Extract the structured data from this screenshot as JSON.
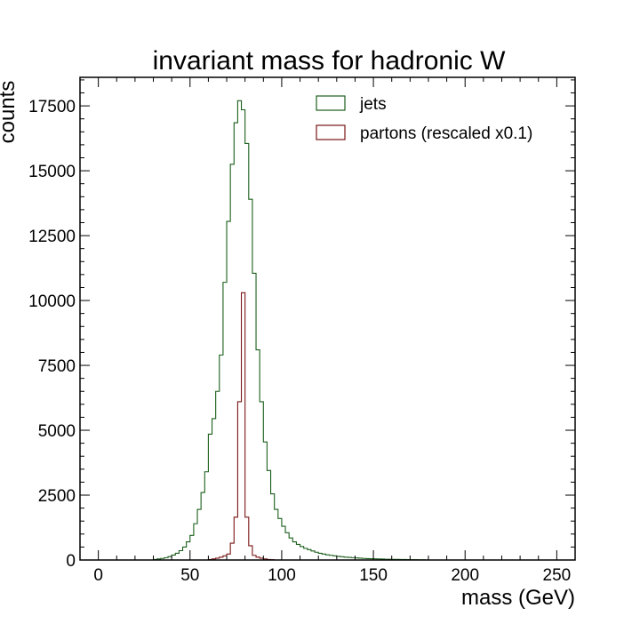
{
  "chart_data": {
    "type": "histogram",
    "title": "invariant mass for hadronic W",
    "xlabel": "mass (GeV)",
    "ylabel": "counts",
    "xlim": [
      -10,
      260
    ],
    "ylim": [
      0,
      18600
    ],
    "x_ticks": [
      0,
      50,
      100,
      150,
      200,
      250
    ],
    "y_ticks": [
      0,
      2500,
      5000,
      7500,
      10000,
      12500,
      15000,
      17500
    ],
    "bin_width": 2,
    "bin_start": 30,
    "legend_position": "top-right",
    "series": [
      {
        "name": "jets",
        "color": "#1a5e1a",
        "bin_start": 30,
        "bin_width": 2,
        "values": [
          20,
          40,
          60,
          90,
          130,
          190,
          260,
          360,
          500,
          700,
          950,
          1400,
          1950,
          2600,
          3400,
          4850,
          5450,
          6500,
          7900,
          10700,
          13050,
          15250,
          16850,
          17700,
          17350,
          16050,
          13900,
          11050,
          8100,
          6100,
          4550,
          3450,
          2550,
          1950,
          1600,
          1300,
          1050,
          850,
          700,
          600,
          520,
          450,
          400,
          350,
          300,
          260,
          230,
          200,
          180,
          160,
          140,
          125,
          110,
          100,
          90,
          80,
          70,
          60,
          55,
          50,
          45,
          40,
          35,
          30,
          28,
          25,
          22,
          20,
          18,
          15,
          12,
          10,
          8,
          5,
          3
        ]
      },
      {
        "name": "partons (rescaled x0.1)",
        "color": "#7a1515",
        "bin_start": 60,
        "bin_width": 2,
        "values": [
          20,
          40,
          70,
          110,
          160,
          230,
          650,
          1650,
          6100,
          10300,
          1650,
          550,
          180,
          110,
          70,
          40,
          20,
          10
        ]
      }
    ]
  }
}
